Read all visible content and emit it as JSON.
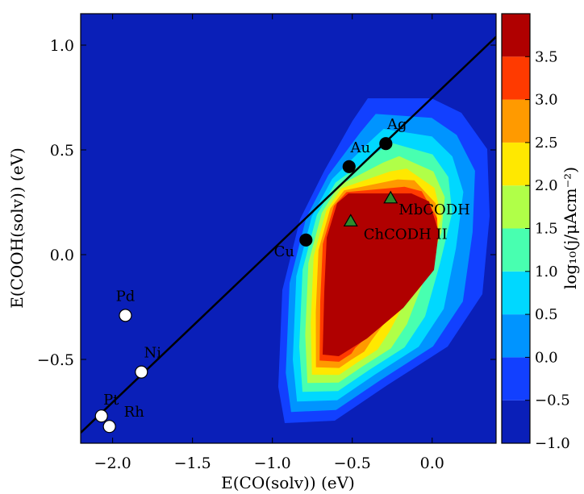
{
  "chart_data": {
    "type": "scatter",
    "title": "",
    "xlabel": "E(CO(solv)) (eV)",
    "ylabel": "E(COOH(solv)) (eV)",
    "xlim": [
      -2.2,
      0.4
    ],
    "ylim": [
      -0.9,
      1.15
    ],
    "x_ticks": [
      "−2.0",
      "−1.5",
      "−1.0",
      "−0.5",
      "0.0"
    ],
    "x_tick_values": [
      -2.0,
      -1.5,
      -1.0,
      -0.5,
      0.0
    ],
    "y_ticks": [
      "−0.5",
      "0.0",
      "0.5",
      "1.0"
    ],
    "y_tick_values": [
      -0.5,
      0.0,
      0.5,
      1.0
    ],
    "background_color": "#0a1fb8",
    "scaling_line": {
      "x": [
        -2.2,
        0.4
      ],
      "y": [
        -0.85,
        1.04
      ],
      "color": "#000000"
    },
    "series": [
      {
        "marker": "white-circle",
        "color": "#ffffff",
        "points": [
          {
            "label": "Pd",
            "x": -1.92,
            "y": -0.29
          },
          {
            "label": "Ni",
            "x": -1.82,
            "y": -0.56
          },
          {
            "label": "Pt",
            "x": -2.07,
            "y": -0.77
          },
          {
            "label": "Rh",
            "x": -2.02,
            "y": -0.82
          }
        ]
      },
      {
        "marker": "black-circle",
        "color": "#000000",
        "points": [
          {
            "label": "Ag",
            "x": -0.29,
            "y": 0.53
          },
          {
            "label": "Au",
            "x": -0.52,
            "y": 0.42
          },
          {
            "label": "Cu",
            "x": -0.79,
            "y": 0.07
          }
        ]
      },
      {
        "marker": "green-triangle",
        "color": "#2e8b2e",
        "points": [
          {
            "label": "MbCODH",
            "x": -0.26,
            "y": 0.27
          },
          {
            "label": "ChCODH II",
            "x": -0.51,
            "y": 0.16
          }
        ]
      }
    ],
    "contour": {
      "levels": [
        -0.5,
        0.0,
        0.5,
        1.0,
        1.5,
        2.0,
        2.5,
        3.0,
        3.5
      ],
      "colors": [
        "#1240ff",
        "#0094ff",
        "#00d8ff",
        "#48ffb0",
        "#b0ff48",
        "#ffe800",
        "#ff9a00",
        "#ff3a00",
        "#b00000"
      ]
    },
    "colorbar": {
      "label": "log10(j/μAcm−2)",
      "min": -1.0,
      "max": 4.0,
      "ticks": [
        "−1.0",
        "−0.5",
        "0.0",
        "0.5",
        "1.0",
        "1.5",
        "2.0",
        "2.5",
        "3.0",
        "3.5"
      ],
      "tick_values": [
        -1.0,
        -0.5,
        0.0,
        0.5,
        1.0,
        1.5,
        2.0,
        2.5,
        3.0,
        3.5
      ],
      "colors": [
        "#0a1fb8",
        "#1240ff",
        "#0094ff",
        "#00d8ff",
        "#48ffb0",
        "#b0ff48",
        "#ffe800",
        "#ff9a00",
        "#ff3a00",
        "#b00000"
      ]
    }
  }
}
